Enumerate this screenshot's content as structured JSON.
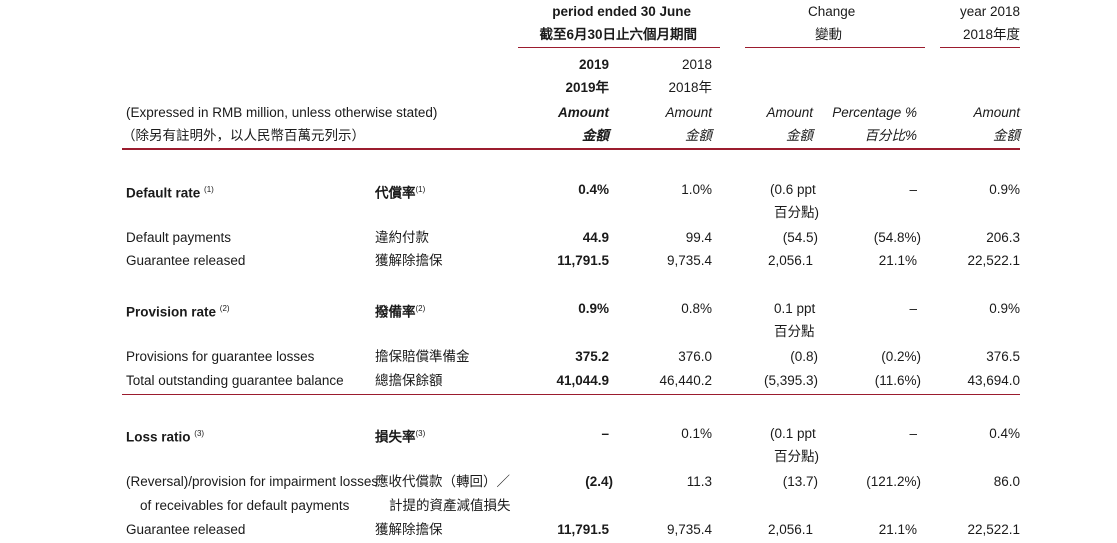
{
  "colors": {
    "accent_rule": "#9b1c2e",
    "text": "#1a1a1a"
  },
  "header": {
    "period_en": "period ended 30 June",
    "period_zh": "截至6月30日止六個月期間",
    "change_en": "Change",
    "change_zh": "變動",
    "year_en": "year 2018",
    "year_zh": "2018年度",
    "col_2019": "2019",
    "col_2019_zh": "2019年",
    "col_2018": "2018",
    "col_2018_zh": "2018年",
    "expressed_en": "(Expressed in RMB million, unless otherwise stated)",
    "expressed_zh": "（除另有註明外，以人民幣百萬元列示）",
    "amount_en": "Amount",
    "amount_zh": "金額",
    "pct_en": "Percentage %",
    "pct_zh": "百分比%"
  },
  "rows": {
    "default_rate": {
      "label_en": "Default rate",
      "note": "(1)",
      "label_zh": "代償率",
      "v2019": "0.4%",
      "v2018": "1.0%",
      "change_amount": "(0.6 ppt",
      "change_amount_zh": "百分點)",
      "change_pct": "–",
      "year2018": "0.9%"
    },
    "default_payments": {
      "label_en": "Default payments",
      "label_zh": "違約付款",
      "v2019": "44.9",
      "v2018": "99.4",
      "change_amount": "(54.5)",
      "change_pct": "(54.8%)",
      "year2018": "206.3"
    },
    "guarantee_released_1": {
      "label_en": "Guarantee released",
      "label_zh": "獲解除擔保",
      "v2019": "11,791.5",
      "v2018": "9,735.4",
      "change_amount": "2,056.1",
      "change_pct": "21.1%",
      "year2018": "22,522.1"
    },
    "provision_rate": {
      "label_en": "Provision rate",
      "note": "(2)",
      "label_zh": "撥備率",
      "v2019": "0.9%",
      "v2018": "0.8%",
      "change_amount": "0.1 ppt",
      "change_amount_zh": "百分點",
      "change_pct": "–",
      "year2018": "0.9%"
    },
    "provisions_losses": {
      "label_en": "Provisions for guarantee losses",
      "label_zh": "擔保賠償準備金",
      "v2019": "375.2",
      "v2018": "376.0",
      "change_amount": "(0.8)",
      "change_pct": "(0.2%)",
      "year2018": "376.5"
    },
    "total_outstanding": {
      "label_en": "Total outstanding guarantee balance",
      "label_zh": "總擔保餘額",
      "v2019": "41,044.9",
      "v2018": "46,440.2",
      "change_amount": "(5,395.3)",
      "change_pct": "(11.6%)",
      "year2018": "43,694.0"
    },
    "loss_ratio": {
      "label_en": "Loss ratio",
      "note": "(3)",
      "label_zh": "損失率",
      "v2019": "–",
      "v2018": "0.1%",
      "change_amount": "(0.1 ppt",
      "change_amount_zh": "百分點)",
      "change_pct": "–",
      "year2018": "0.4%"
    },
    "reversal_provision": {
      "label_en_1": "(Reversal)/provision for impairment losses",
      "label_en_2": "of receivables for default payments",
      "label_zh_1": "應收代償款（轉回）／",
      "label_zh_2": "計提的資產減值損失",
      "v2019": "(2.4)",
      "v2018": "11.3",
      "change_amount": "(13.7)",
      "change_pct": "(121.2%)",
      "year2018": "86.0"
    },
    "guarantee_released_2": {
      "label_en": "Guarantee released",
      "label_zh": "獲解除擔保",
      "v2019": "11,791.5",
      "v2018": "9,735.4",
      "change_amount": "2,056.1",
      "change_pct": "21.1%",
      "year2018": "22,522.1"
    }
  }
}
